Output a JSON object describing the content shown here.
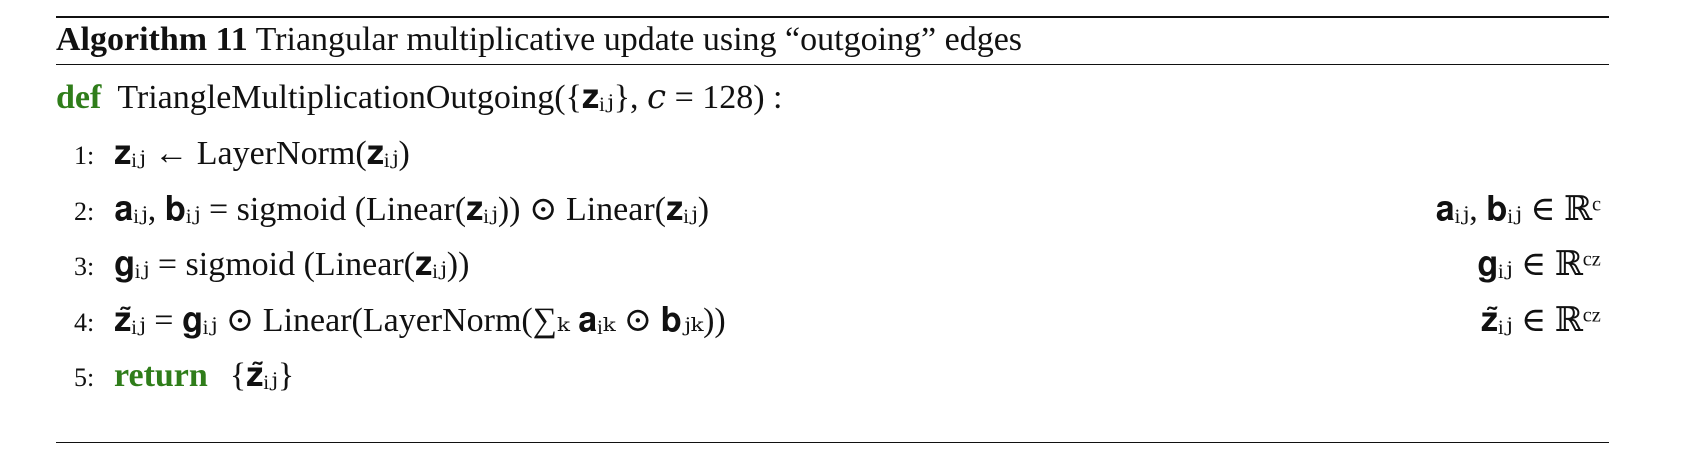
{
  "algorithm": {
    "label": "Algorithm 11",
    "title": "Triangular multiplicative update using “outgoing” edges"
  },
  "definition": {
    "keyword": "def",
    "signature": "TriangleMultiplicationOutgoing({𝐳ᵢⱼ}, 𝑐 = 128) :"
  },
  "steps": [
    {
      "number": "1:",
      "statement": "𝐳ᵢⱼ ← LayerNorm(𝐳ᵢⱼ)",
      "comment": ""
    },
    {
      "number": "2:",
      "statement": "𝐚ᵢⱼ, 𝐛ᵢⱼ = sigmoid (Linear(𝐳ᵢⱼ)) ⊙ Linear(𝐳ᵢⱼ)",
      "comment": "𝐚ᵢⱼ, 𝐛ᵢⱼ ∈ ℝᶜ"
    },
    {
      "number": "3:",
      "statement": "𝐠ᵢⱼ = sigmoid (Linear(𝐳ᵢⱼ))",
      "comment": "𝐠ᵢⱼ ∈ ℝᶜᶻ"
    },
    {
      "number": "4:",
      "statement": "𝐳̃ᵢⱼ = 𝐠ᵢⱼ ⊙ Linear(LayerNorm(∑ₖ 𝐚ᵢₖ ⊙ 𝐛ⱼₖ))",
      "comment": "𝐳̃ᵢⱼ ∈ ℝᶜᶻ"
    },
    {
      "number": "5:",
      "keyword": "return",
      "statement": "{𝐳̃ᵢⱼ}",
      "comment": ""
    }
  ],
  "colors": {
    "keyword": "#2f7d1a",
    "text": "#111111",
    "rule": "#111111"
  }
}
